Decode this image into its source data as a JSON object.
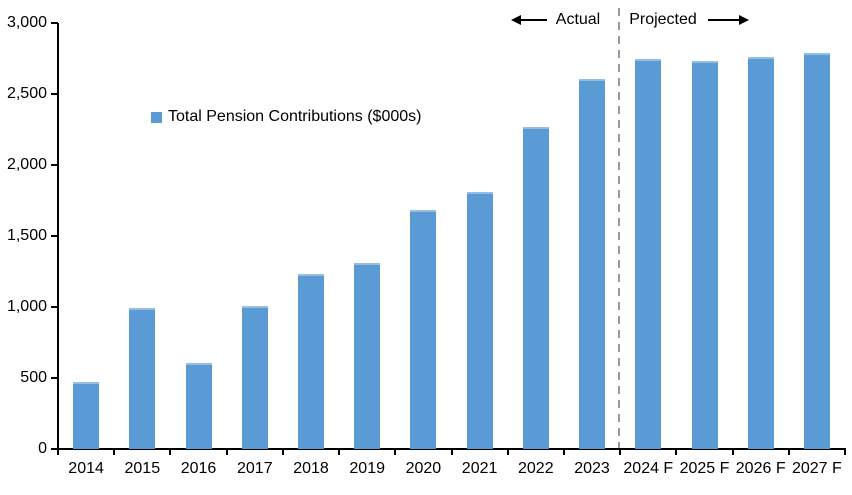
{
  "chart_data": {
    "type": "bar",
    "title": "",
    "xlabel": "",
    "ylabel": "",
    "categories": [
      "2014",
      "2015",
      "2016",
      "2017",
      "2018",
      "2019",
      "2020",
      "2021",
      "2022",
      "2023",
      "2024 F",
      "2025 F",
      "2026 F",
      "2027 F"
    ],
    "values": [
      470,
      990,
      605,
      1010,
      1230,
      1310,
      1680,
      1810,
      2270,
      2605,
      2745,
      2735,
      2760,
      2790
    ],
    "series_name": "Total Pension Contributions ($000s)",
    "legend": {
      "label": "Total Pension Contributions ($000s)",
      "position": "inside-upper-left"
    },
    "ylim": [
      0,
      3000
    ],
    "ytick_interval": 500,
    "ytick_labels": [
      "0",
      "500",
      "1,000",
      "1,500",
      "2,000",
      "2,500",
      "3,000"
    ],
    "grid": false,
    "annotations": {
      "actual_label": "Actual",
      "projected_label": "Projected",
      "divider_after_category": "2023",
      "divider_style": "dashed"
    },
    "colors": {
      "bar": "#5B9BD5",
      "axis": "#000000",
      "text": "#000000",
      "divider": "#999999"
    }
  }
}
